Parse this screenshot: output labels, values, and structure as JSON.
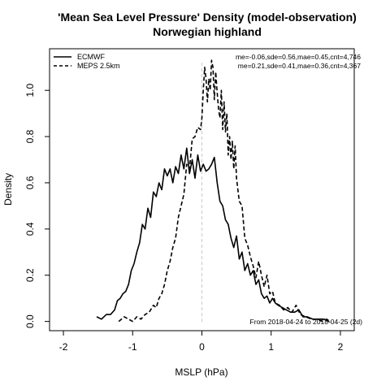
{
  "chart_data": {
    "type": "line",
    "title": "'Mean Sea Level Pressure' Density (model-observation)",
    "subtitle": "Norwegian highland",
    "xlabel": "MSLP (hPa)",
    "ylabel": "Density",
    "xlim": [
      -2.2,
      2.2
    ],
    "ylim": [
      -0.04,
      1.18
    ],
    "x_ticks": [
      -2,
      -1,
      0,
      1,
      2
    ],
    "x_tick_labels": [
      "-2",
      "-1",
      "0",
      "1",
      "2"
    ],
    "y_ticks": [
      0.0,
      0.2,
      0.4,
      0.6,
      0.8,
      1.0
    ],
    "y_tick_labels": [
      "0.0",
      "0.2",
      "0.4",
      "0.6",
      "0.8",
      "1.0"
    ],
    "reference_line_x": 0,
    "legend_position": "top-left",
    "series": [
      {
        "name": "ECMWF",
        "line_style": "solid",
        "stats": "me=-0.06,sde=0.56,mae=0.45,cnt=4,746",
        "x": [
          -1.52,
          -1.45,
          -1.38,
          -1.32,
          -1.26,
          -1.22,
          -1.18,
          -1.14,
          -1.1,
          -1.06,
          -1.02,
          -0.98,
          -0.94,
          -0.9,
          -0.86,
          -0.82,
          -0.78,
          -0.74,
          -0.7,
          -0.66,
          -0.62,
          -0.58,
          -0.54,
          -0.5,
          -0.46,
          -0.42,
          -0.38,
          -0.34,
          -0.3,
          -0.26,
          -0.22,
          -0.18,
          -0.14,
          -0.1,
          -0.06,
          -0.02,
          0.02,
          0.06,
          0.1,
          0.14,
          0.18,
          0.22,
          0.26,
          0.3,
          0.34,
          0.38,
          0.42,
          0.46,
          0.5,
          0.54,
          0.58,
          0.62,
          0.66,
          0.7,
          0.74,
          0.78,
          0.82,
          0.86,
          0.9,
          0.94,
          0.98,
          1.02,
          1.06,
          1.1,
          1.16,
          1.22,
          1.28,
          1.34,
          1.4,
          1.46,
          1.52,
          1.6,
          1.68,
          1.76,
          1.84
        ],
        "y": [
          0.02,
          0.01,
          0.03,
          0.03,
          0.05,
          0.09,
          0.1,
          0.12,
          0.13,
          0.16,
          0.22,
          0.25,
          0.3,
          0.34,
          0.42,
          0.4,
          0.49,
          0.45,
          0.56,
          0.54,
          0.6,
          0.57,
          0.66,
          0.63,
          0.66,
          0.6,
          0.67,
          0.64,
          0.72,
          0.66,
          0.75,
          0.64,
          0.7,
          0.62,
          0.72,
          0.65,
          0.68,
          0.65,
          0.66,
          0.68,
          0.71,
          0.6,
          0.52,
          0.5,
          0.44,
          0.42,
          0.36,
          0.32,
          0.37,
          0.27,
          0.3,
          0.22,
          0.25,
          0.2,
          0.22,
          0.16,
          0.18,
          0.12,
          0.1,
          0.11,
          0.08,
          0.1,
          0.08,
          0.07,
          0.06,
          0.05,
          0.04,
          0.04,
          0.05,
          0.02,
          0.02,
          0.01,
          0.01,
          0.01,
          0.0
        ]
      },
      {
        "name": "MEPS 2.5km",
        "line_style": "dashed",
        "stats": "me=0.21,sde=0.41,mae=0.36,cnt=4,367",
        "x": [
          -1.2,
          -1.12,
          -1.06,
          -1.0,
          -0.94,
          -0.88,
          -0.82,
          -0.76,
          -0.7,
          -0.66,
          -0.62,
          -0.58,
          -0.54,
          -0.5,
          -0.46,
          -0.42,
          -0.38,
          -0.34,
          -0.3,
          -0.26,
          -0.22,
          -0.18,
          -0.14,
          -0.1,
          -0.06,
          -0.02,
          0.0,
          0.02,
          0.04,
          0.06,
          0.08,
          0.1,
          0.12,
          0.14,
          0.16,
          0.18,
          0.2,
          0.22,
          0.24,
          0.26,
          0.28,
          0.3,
          0.32,
          0.34,
          0.36,
          0.38,
          0.4,
          0.42,
          0.44,
          0.46,
          0.48,
          0.5,
          0.54,
          0.58,
          0.62,
          0.66,
          0.7,
          0.74,
          0.78,
          0.82,
          0.86,
          0.9,
          0.94,
          0.98,
          1.02,
          1.06,
          1.12,
          1.18,
          1.24,
          1.3,
          1.36,
          1.42,
          1.5,
          1.58,
          1.66,
          1.74,
          1.8,
          1.86
        ],
        "y": [
          0.0,
          0.02,
          0.01,
          0.0,
          0.02,
          0.01,
          0.03,
          0.04,
          0.07,
          0.06,
          0.1,
          0.12,
          0.16,
          0.22,
          0.26,
          0.32,
          0.36,
          0.45,
          0.5,
          0.55,
          0.68,
          0.66,
          0.79,
          0.8,
          0.84,
          0.83,
          0.88,
          1.0,
          1.1,
          1.05,
          0.95,
          1.05,
          1.0,
          1.13,
          1.1,
          0.96,
          1.08,
          0.99,
          0.92,
          0.88,
          1.0,
          0.83,
          0.95,
          0.82,
          0.9,
          0.72,
          0.8,
          0.7,
          0.78,
          0.66,
          0.76,
          0.62,
          0.52,
          0.5,
          0.36,
          0.33,
          0.28,
          0.24,
          0.19,
          0.26,
          0.2,
          0.15,
          0.2,
          0.12,
          0.13,
          0.08,
          0.07,
          0.05,
          0.06,
          0.04,
          0.07,
          0.03,
          0.02,
          0.01,
          0.01,
          0.0,
          0.01,
          0.0
        ]
      }
    ],
    "annotation": "From 2018-04-24 to 2018-04-25 (2d)"
  }
}
